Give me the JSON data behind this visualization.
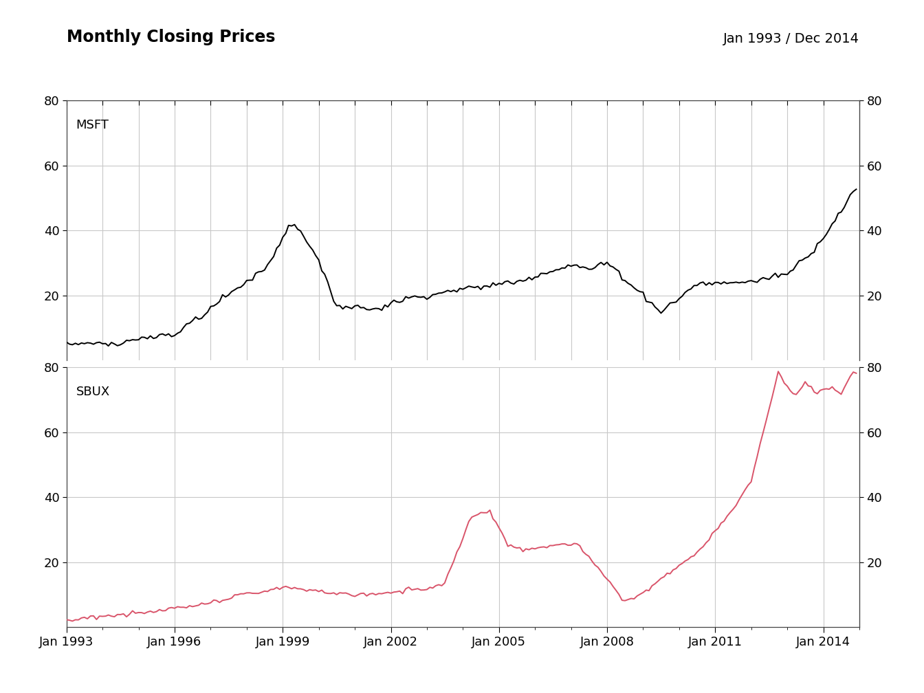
{
  "title": "Monthly Closing Prices",
  "date_range": "Jan 1993 / Dec 2014",
  "panel1_label": "MSFT",
  "panel2_label": "SBUX",
  "panel1_color": "#000000",
  "panel2_color": "#d9546a",
  "background_color": "#ffffff",
  "grid_color": "#c8c8c8",
  "ylim": [
    0,
    80
  ],
  "yticks": [
    20,
    40,
    60,
    80
  ],
  "xtick_years": [
    1993,
    1996,
    1999,
    2002,
    2005,
    2008,
    2011,
    2014
  ],
  "line_width": 1.4,
  "title_fontsize": 17,
  "tick_fontsize": 13,
  "label_fontsize": 13,
  "date_range_fontsize": 14
}
